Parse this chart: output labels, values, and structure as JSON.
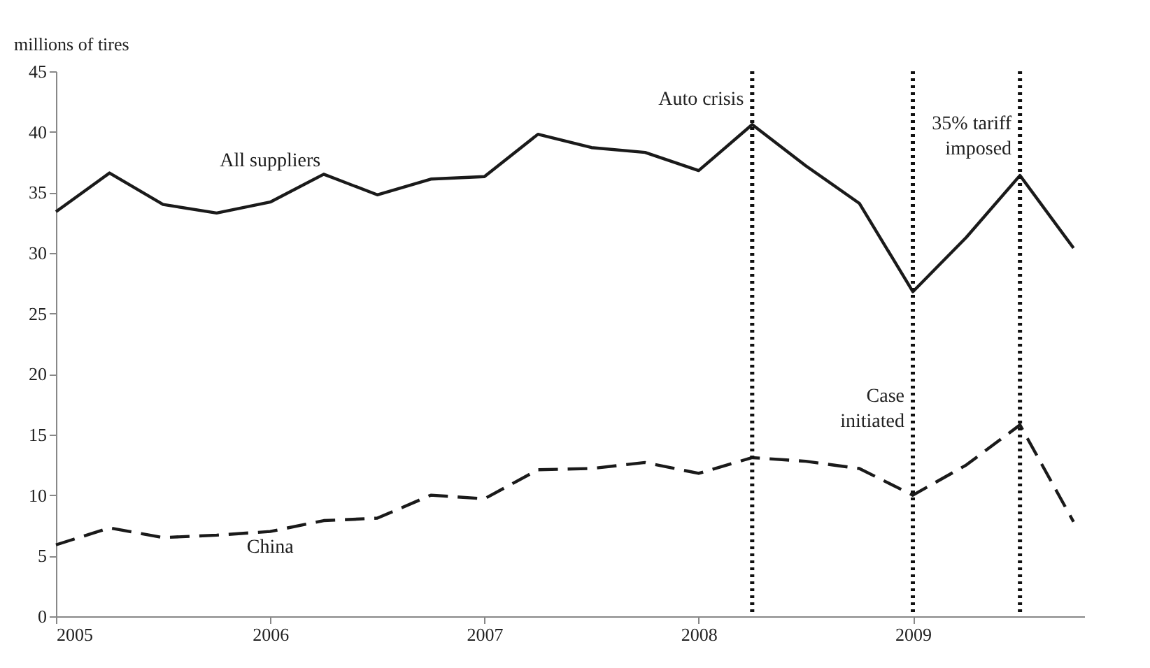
{
  "chart_data": {
    "type": "line",
    "ylabel": "millions of tires",
    "x": [
      2005,
      2005.25,
      2005.5,
      2005.75,
      2006,
      2006.25,
      2006.5,
      2006.75,
      2007,
      2007.25,
      2007.5,
      2007.75,
      2008,
      2008.25,
      2008.5,
      2008.75,
      2009,
      2009.25,
      2009.5,
      2009.75
    ],
    "series": [
      {
        "name": "All suppliers",
        "color": "#1a1a1a",
        "line_style": "solid",
        "values": [
          33.4,
          36.6,
          34.0,
          33.3,
          34.2,
          36.5,
          34.8,
          36.1,
          36.3,
          39.8,
          38.7,
          38.3,
          36.8,
          40.6,
          37.2,
          34.1,
          26.8,
          31.3,
          36.4,
          30.4
        ]
      },
      {
        "name": "China",
        "color": "#1a1a1a",
        "line_style": "dashed",
        "values": [
          5.9,
          7.3,
          6.5,
          6.7,
          7.0,
          7.9,
          8.1,
          10.0,
          9.7,
          12.1,
          12.2,
          12.7,
          11.8,
          13.1,
          12.8,
          12.2,
          10.0,
          12.5,
          15.8,
          7.8
        ]
      }
    ],
    "xlim": [
      2005,
      2009.8
    ],
    "xticks": [
      2005,
      2006,
      2007,
      2008,
      2009
    ],
    "ylim": [
      0,
      45
    ],
    "yticks": [
      0,
      5,
      10,
      15,
      20,
      25,
      30,
      35,
      40,
      45
    ],
    "ref_lines": [
      {
        "axis": "x",
        "value": 2008.25,
        "label": "Auto crisis",
        "line_style": "dotted"
      },
      {
        "axis": "x",
        "value": 2009,
        "label": "Case initiated",
        "line_style": "dotted"
      },
      {
        "axis": "x",
        "value": 2009.5,
        "label": "35% tariff imposed",
        "line_style": "dotted"
      }
    ],
    "grid": false,
    "marker": "none"
  }
}
